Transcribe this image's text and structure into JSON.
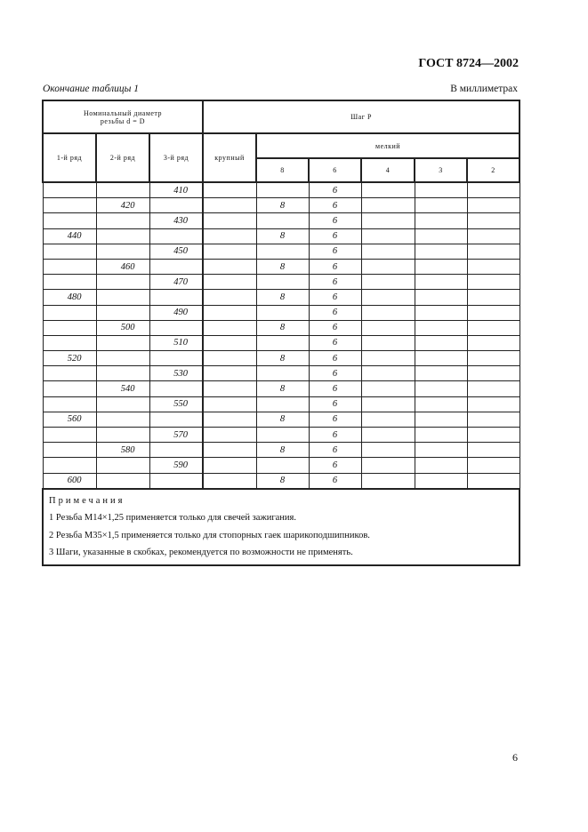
{
  "header": {
    "standard": "ГОСТ 8724—2002",
    "caption": "Окончание таблицы 1",
    "units": "В миллиметрах"
  },
  "table": {
    "diameter_header": "Номинальный диаметр резьбы d = D",
    "pitch_header": "Шаг P",
    "row_headers": [
      "1-й ряд",
      "2-й ряд",
      "3-й ряд"
    ],
    "coarse": "крупный",
    "fine": "мелкий",
    "fine_cols": [
      "8",
      "6",
      "4",
      "3",
      "2"
    ],
    "rows": [
      [
        "",
        "",
        "410",
        "",
        "",
        "6",
        "",
        "",
        ""
      ],
      [
        "",
        "420",
        "",
        "",
        "8",
        "6",
        "",
        "",
        ""
      ],
      [
        "",
        "",
        "430",
        "",
        "",
        "6",
        "",
        "",
        ""
      ],
      [
        "440",
        "",
        "",
        "",
        "8",
        "6",
        "",
        "",
        ""
      ],
      [
        "",
        "",
        "450",
        "",
        "",
        "6",
        "",
        "",
        ""
      ],
      [
        "",
        "460",
        "",
        "",
        "8",
        "6",
        "",
        "",
        ""
      ],
      [
        "",
        "",
        "470",
        "",
        "",
        "6",
        "",
        "",
        ""
      ],
      [
        "480",
        "",
        "",
        "",
        "8",
        "6",
        "",
        "",
        ""
      ],
      [
        "",
        "",
        "490",
        "",
        "",
        "6",
        "",
        "",
        ""
      ],
      [
        "",
        "500",
        "",
        "",
        "8",
        "6",
        "",
        "",
        ""
      ],
      [
        "",
        "",
        "510",
        "",
        "",
        "6",
        "",
        "",
        ""
      ],
      [
        "520",
        "",
        "",
        "",
        "8",
        "6",
        "",
        "",
        ""
      ],
      [
        "",
        "",
        "530",
        "",
        "",
        "6",
        "",
        "",
        ""
      ],
      [
        "",
        "540",
        "",
        "",
        "8",
        "6",
        "",
        "",
        ""
      ],
      [
        "",
        "",
        "550",
        "",
        "",
        "6",
        "",
        "",
        ""
      ],
      [
        "560",
        "",
        "",
        "",
        "8",
        "6",
        "",
        "",
        ""
      ],
      [
        "",
        "",
        "570",
        "",
        "",
        "6",
        "",
        "",
        ""
      ],
      [
        "",
        "580",
        "",
        "",
        "8",
        "6",
        "",
        "",
        ""
      ],
      [
        "",
        "",
        "590",
        "",
        "",
        "6",
        "",
        "",
        ""
      ],
      [
        "600",
        "",
        "",
        "",
        "8",
        "6",
        "",
        "",
        ""
      ]
    ]
  },
  "notes": {
    "title": "Примечания",
    "items": [
      "1 Резьба М14×1,25 применяется только для свечей зажигания.",
      "2 Резьба М35×1,5 применяется только для стопорных гаек шарикоподшипников.",
      "3 Шаги, указанные в скобках, рекомендуется по возможности не применять."
    ]
  },
  "page_number": "6"
}
